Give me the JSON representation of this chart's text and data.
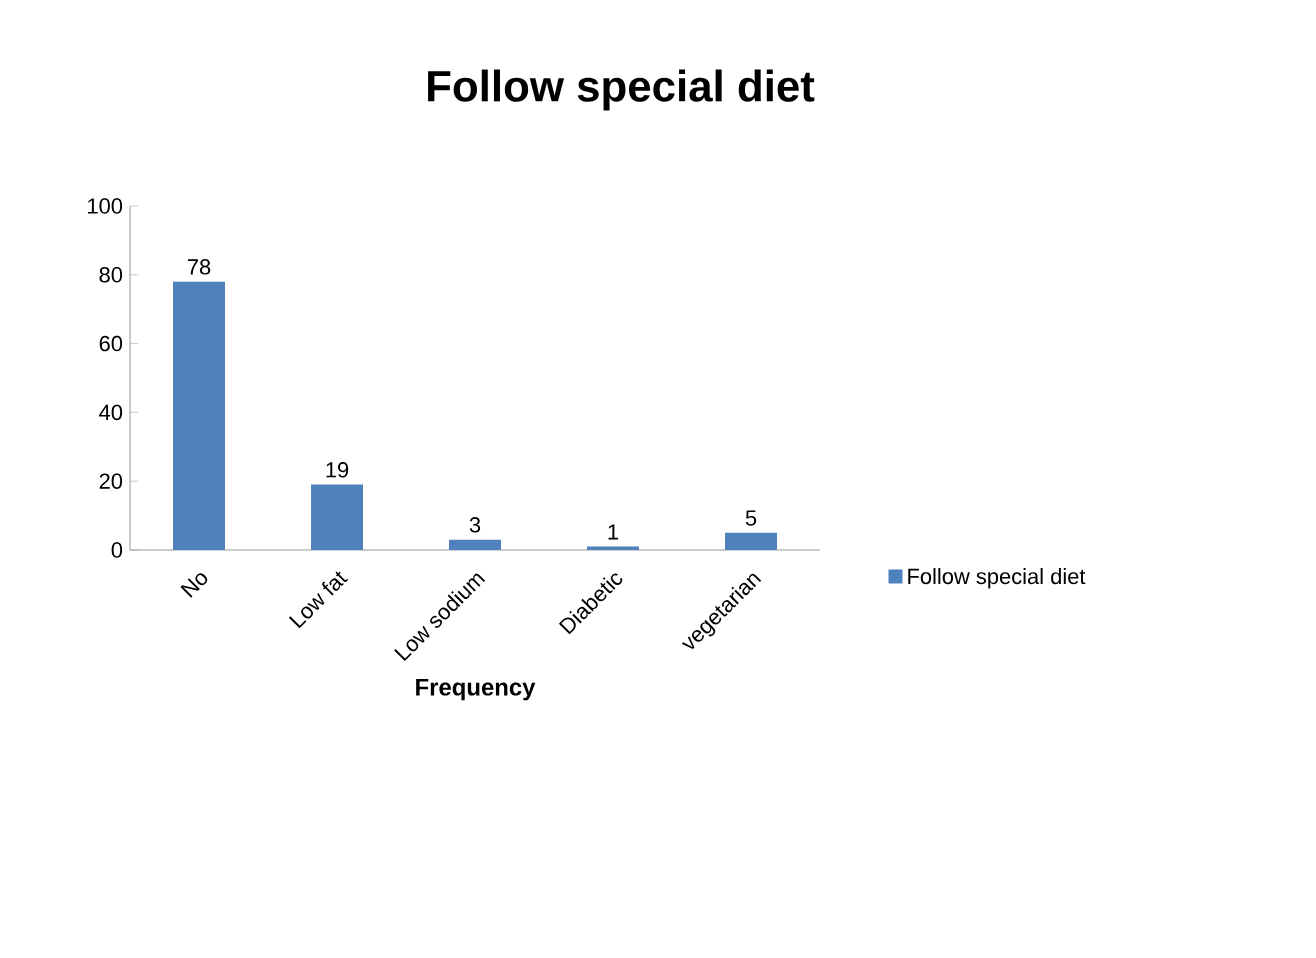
{
  "chart_data": {
    "type": "bar",
    "title": "Follow special diet",
    "xlabel": "Frequency",
    "categories": [
      "No",
      "Low fat",
      "Low sodium",
      "Diabetic",
      "vegetarian"
    ],
    "series": [
      {
        "name": "Follow special diet",
        "color": "#4f81bd",
        "values": [
          78,
          19,
          3,
          1,
          5
        ]
      }
    ],
    "ylim": [
      0,
      100
    ],
    "yticks": [
      0,
      20,
      40,
      60,
      80,
      100
    ],
    "data_labels": true,
    "legend": "right",
    "grid": false
  }
}
